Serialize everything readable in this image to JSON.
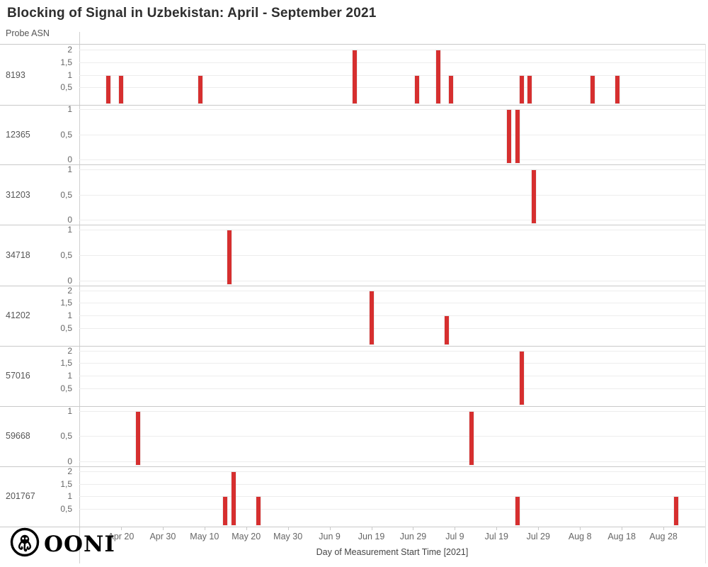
{
  "title": "Blocking of Signal in Uzbekistan: April - September 2021",
  "logo": {
    "text": "OONI",
    "icon": "ooni-octopus-logo"
  },
  "chart_data": {
    "type": "bar",
    "title": "Blocking of Signal in Uzbekistan: April - September 2021",
    "facet_axis_label": "Probe ASN",
    "xlabel": "Day of Measurement Start Time [2021]",
    "bar_color": "#d62f2f",
    "x_range": [
      "Apr 10",
      "Sep 7"
    ],
    "x_domain_days": 150,
    "grid": true,
    "x_ticks": [
      {
        "label": "Apr 20",
        "day": 10
      },
      {
        "label": "Apr 30",
        "day": 20
      },
      {
        "label": "May 10",
        "day": 30
      },
      {
        "label": "May 20",
        "day": 40
      },
      {
        "label": "May 30",
        "day": 50
      },
      {
        "label": "Jun 9",
        "day": 60
      },
      {
        "label": "Jun 19",
        "day": 70
      },
      {
        "label": "Jun 29",
        "day": 80
      },
      {
        "label": "Jul 9",
        "day": 90
      },
      {
        "label": "Jul 19",
        "day": 100
      },
      {
        "label": "Jul 29",
        "day": 110
      },
      {
        "label": "Aug 8",
        "day": 120
      },
      {
        "label": "Aug 18",
        "day": 130
      },
      {
        "label": "Aug 28",
        "day": 140
      }
    ],
    "facets": [
      {
        "asn": "8193",
        "ymax": 2,
        "y_ticks": [
          {
            "value": 2,
            "label": "2"
          },
          {
            "value": 1.5,
            "label": "1,5"
          },
          {
            "value": 1,
            "label": "1"
          },
          {
            "value": 0.5,
            "label": "0,5"
          }
        ],
        "bars": [
          {
            "date": "Apr 17",
            "day": 7,
            "value": 1
          },
          {
            "date": "Apr 20",
            "day": 10,
            "value": 1
          },
          {
            "date": "May 9",
            "day": 29,
            "value": 1
          },
          {
            "date": "Jun 15",
            "day": 66,
            "value": 2
          },
          {
            "date": "Jun 30",
            "day": 81,
            "value": 1
          },
          {
            "date": "Jul 5",
            "day": 86,
            "value": 2
          },
          {
            "date": "Jul 8",
            "day": 89,
            "value": 1
          },
          {
            "date": "Jul 25",
            "day": 106,
            "value": 1
          },
          {
            "date": "Jul 27",
            "day": 108,
            "value": 1
          },
          {
            "date": "Aug 11",
            "day": 123,
            "value": 1
          },
          {
            "date": "Aug 17",
            "day": 129,
            "value": 1
          }
        ]
      },
      {
        "asn": "12365",
        "ymax": 1,
        "y_ticks": [
          {
            "value": 1,
            "label": "1"
          },
          {
            "value": 0.5,
            "label": "0,5"
          },
          {
            "value": 0,
            "label": "0"
          }
        ],
        "bars": [
          {
            "date": "Jul 22",
            "day": 103,
            "value": 1
          },
          {
            "date": "Jul 24",
            "day": 105,
            "value": 1
          }
        ]
      },
      {
        "asn": "31203",
        "ymax": 1,
        "y_ticks": [
          {
            "value": 1,
            "label": "1"
          },
          {
            "value": 0.5,
            "label": "0,5"
          },
          {
            "value": 0,
            "label": "0"
          }
        ],
        "bars": [
          {
            "date": "Jul 28",
            "day": 109,
            "value": 1
          }
        ]
      },
      {
        "asn": "34718",
        "ymax": 1,
        "y_ticks": [
          {
            "value": 1,
            "label": "1"
          },
          {
            "value": 0.5,
            "label": "0,5"
          },
          {
            "value": 0,
            "label": "0"
          }
        ],
        "bars": [
          {
            "date": "May 16",
            "day": 36,
            "value": 1
          }
        ]
      },
      {
        "asn": "41202",
        "ymax": 2,
        "y_ticks": [
          {
            "value": 2,
            "label": "2"
          },
          {
            "value": 1.5,
            "label": "1,5"
          },
          {
            "value": 1,
            "label": "1"
          },
          {
            "value": 0.5,
            "label": "0,5"
          }
        ],
        "bars": [
          {
            "date": "Jun 19",
            "day": 70,
            "value": 2
          },
          {
            "date": "Jul 7",
            "day": 88,
            "value": 1
          }
        ]
      },
      {
        "asn": "57016",
        "ymax": 2,
        "y_ticks": [
          {
            "value": 2,
            "label": "2"
          },
          {
            "value": 1.5,
            "label": "1,5"
          },
          {
            "value": 1,
            "label": "1"
          },
          {
            "value": 0.5,
            "label": "0,5"
          }
        ],
        "bars": [
          {
            "date": "Jul 25",
            "day": 106,
            "value": 2
          }
        ]
      },
      {
        "asn": "59668",
        "ymax": 1,
        "y_ticks": [
          {
            "value": 1,
            "label": "1"
          },
          {
            "value": 0.5,
            "label": "0,5"
          },
          {
            "value": 0,
            "label": "0"
          }
        ],
        "bars": [
          {
            "date": "Apr 24",
            "day": 14,
            "value": 1
          },
          {
            "date": "Jul 13",
            "day": 94,
            "value": 1
          }
        ]
      },
      {
        "asn": "201767",
        "ymax": 2,
        "y_ticks": [
          {
            "value": 2,
            "label": "2"
          },
          {
            "value": 1.5,
            "label": "1,5"
          },
          {
            "value": 1,
            "label": "1"
          },
          {
            "value": 0.5,
            "label": "0,5"
          }
        ],
        "bars": [
          {
            "date": "May 15",
            "day": 35,
            "value": 1
          },
          {
            "date": "May 17",
            "day": 37,
            "value": 2
          },
          {
            "date": "May 23",
            "day": 43,
            "value": 1
          },
          {
            "date": "Jul 24",
            "day": 105,
            "value": 1
          },
          {
            "date": "Aug 30",
            "day": 143,
            "value": 1
          }
        ]
      }
    ]
  }
}
